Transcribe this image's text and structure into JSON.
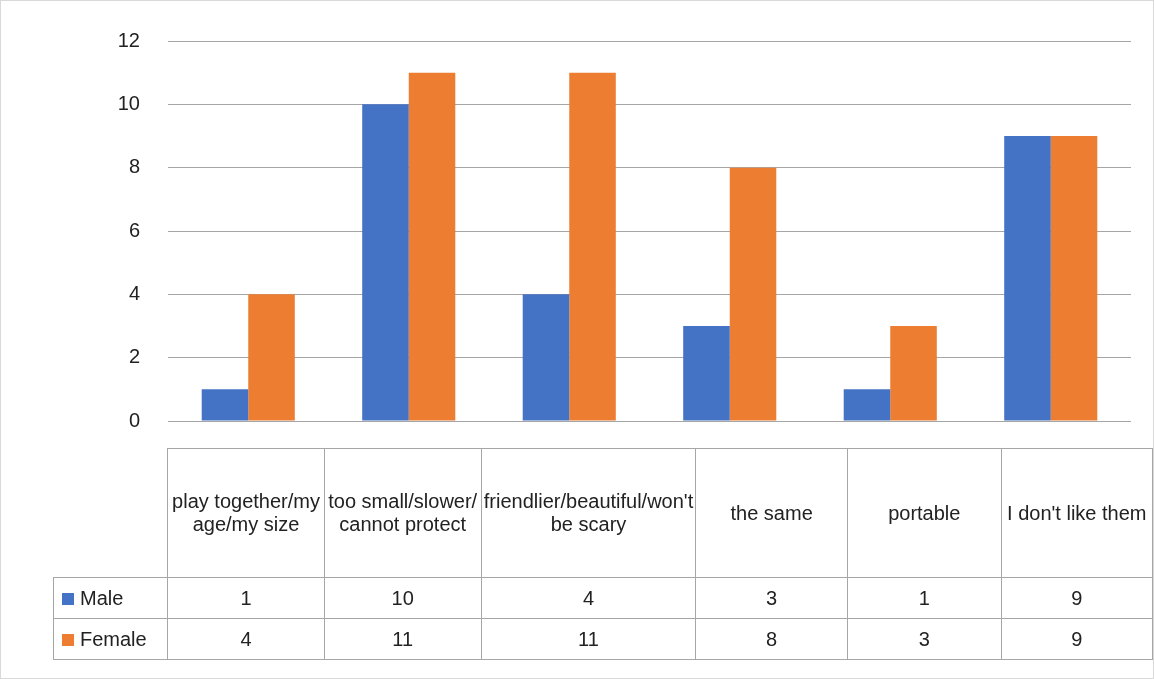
{
  "chart_data": {
    "type": "bar",
    "categories": [
      "play together/my age/my size",
      "too small/slower/ cannot protect",
      "friendlier/beautiful/won't be scary",
      "the same",
      "portable",
      "I don't like them"
    ],
    "series": [
      {
        "name": "Male",
        "color": "#4472c4",
        "values": [
          1,
          10,
          4,
          3,
          1,
          9
        ]
      },
      {
        "name": "Female",
        "color": "#ed7d31",
        "values": [
          4,
          11,
          11,
          8,
          3,
          9
        ]
      }
    ],
    "ylim": [
      0,
      12
    ],
    "yticks": [
      0,
      2,
      4,
      6,
      8,
      10,
      12
    ],
    "grid": "y",
    "legend": "bottom",
    "data_labels": true
  }
}
